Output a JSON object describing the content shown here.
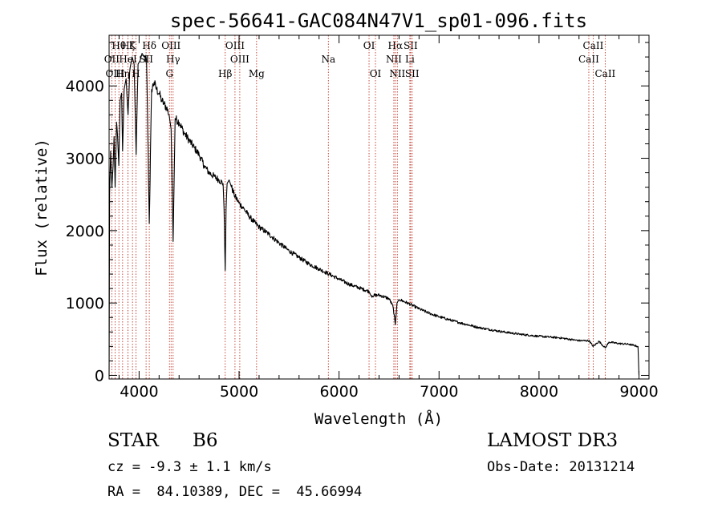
{
  "chart_data": {
    "type": "line",
    "title": "spec-56641-GAC084N47V1_sp01-096.fits",
    "xlabel": "Wavelength (Å)",
    "ylabel": "Flux (relative)",
    "xlim": [
      3700,
      9100
    ],
    "ylim": [
      -50,
      4700
    ],
    "xticks": [
      "4000",
      "5000",
      "6000",
      "7000",
      "8000",
      "9000"
    ],
    "yticks": [
      "0",
      "1000",
      "2000",
      "3000",
      "4000"
    ],
    "grid": false,
    "series": [
      {
        "name": "spectrum",
        "x": [
          3700,
          3705,
          3715,
          3728,
          3740,
          3750,
          3760,
          3775,
          3785,
          3797,
          3810,
          3825,
          3835,
          3850,
          3870,
          3889,
          3910,
          3930,
          3950,
          3970,
          3990,
          4010,
          4030,
          4050,
          4075,
          4102,
          4125,
          4150,
          4175,
          4200,
          4225,
          4250,
          4275,
          4300,
          4320,
          4340,
          4360,
          4400,
          4450,
          4500,
          4550,
          4600,
          4650,
          4700,
          4750,
          4800,
          4840,
          4850,
          4861,
          4870,
          4880,
          4900,
          4920,
          4950,
          5000,
          5050,
          5100,
          5150,
          5200,
          5300,
          5400,
          5500,
          5600,
          5700,
          5800,
          5900,
          6000,
          6100,
          6200,
          6300,
          6320,
          6400,
          6500,
          6540,
          6563,
          6580,
          6600,
          6700,
          6800,
          6900,
          7000,
          7200,
          7400,
          7600,
          7800,
          8000,
          8200,
          8400,
          8500,
          8542,
          8600,
          8662,
          8700,
          8800,
          8900,
          8990,
          9000
        ],
        "y": [
          0,
          2500,
          3100,
          2600,
          2900,
          3300,
          2600,
          3500,
          3300,
          2900,
          3800,
          3900,
          3100,
          3950,
          4100,
          3600,
          4250,
          4400,
          4300,
          3050,
          4300,
          4350,
          4450,
          4400,
          4350,
          2100,
          3950,
          4050,
          3950,
          3900,
          3800,
          3750,
          3700,
          3600,
          3400,
          1850,
          3550,
          3500,
          3350,
          3250,
          3150,
          3050,
          2900,
          2800,
          2750,
          2700,
          2650,
          2300,
          1450,
          2300,
          2650,
          2700,
          2620,
          2500,
          2380,
          2300,
          2200,
          2120,
          2050,
          1950,
          1830,
          1720,
          1630,
          1540,
          1470,
          1400,
          1330,
          1260,
          1210,
          1160,
          1100,
          1110,
          1060,
          950,
          700,
          1000,
          1050,
          990,
          920,
          860,
          810,
          730,
          660,
          610,
          570,
          540,
          520,
          480,
          480,
          400,
          470,
          380,
          460,
          440,
          430,
          400,
          0
        ]
      }
    ],
    "lines": [
      {
        "label": "Hθ",
        "x": 3798,
        "row": 0
      },
      {
        "label": "OII",
        "x": 3727,
        "row": 1
      },
      {
        "label": "OIII",
        "x": 3760,
        "row": 2
      },
      {
        "label": "Hη",
        "x": 3835,
        "row": 2
      },
      {
        "label": "Hζ",
        "x": 3889,
        "row": 0
      },
      {
        "label": "HeI",
        "x": 3889,
        "row": 1
      },
      {
        "label": "K",
        "x": 3934,
        "row": 0
      },
      {
        "label": "H",
        "x": 3969,
        "row": 2
      },
      {
        "label": "SII",
        "x": 4070,
        "row": 1
      },
      {
        "label": "Hδ",
        "x": 4102,
        "row": 0
      },
      {
        "label": "OIII",
        "x": 4320,
        "row": 0
      },
      {
        "label": "Hγ",
        "x": 4340,
        "row": 1
      },
      {
        "label": "G",
        "x": 4304,
        "row": 2
      },
      {
        "label": "Hβ",
        "x": 4861,
        "row": 2
      },
      {
        "label": "OIII",
        "x": 4959,
        "row": 0
      },
      {
        "label": "OIII",
        "x": 5007,
        "row": 1
      },
      {
        "label": "Mg",
        "x": 5175,
        "row": 2
      },
      {
        "label": "Na",
        "x": 5893,
        "row": 1
      },
      {
        "label": "OI",
        "x": 6300,
        "row": 0
      },
      {
        "label": "OI",
        "x": 6364,
        "row": 2
      },
      {
        "label": "Hα",
        "x": 6563,
        "row": 0
      },
      {
        "label": "SII",
        "x": 6716,
        "row": 0
      },
      {
        "label": "NII",
        "x": 6548,
        "row": 1
      },
      {
        "label": "Li",
        "x": 6708,
        "row": 1
      },
      {
        "label": "NII",
        "x": 6583,
        "row": 2
      },
      {
        "label": "SII",
        "x": 6731,
        "row": 2
      },
      {
        "label": "CaII",
        "x": 8542,
        "row": 0
      },
      {
        "label": "CaII",
        "x": 8498,
        "row": 1
      },
      {
        "label": "CaII",
        "x": 8662,
        "row": 2
      }
    ]
  },
  "info": {
    "class": "STAR",
    "subclass": "B6",
    "cz": "cz = -9.3 ± 1.1 km/s",
    "radec": "RA =  84.10389, DEC =  45.66994",
    "survey": "LAMOST DR3",
    "obs_date": "Obs-Date: 20131214"
  }
}
